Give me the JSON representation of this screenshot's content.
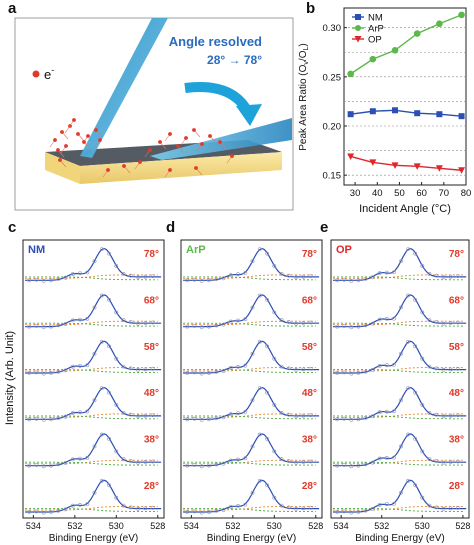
{
  "panel_labels": {
    "a": "a",
    "b": "b",
    "c": "c",
    "d": "d",
    "e": "e"
  },
  "illustration": {
    "electron_label": "e",
    "electron_sup": "-",
    "title": "Angle resolved",
    "range": "28° → 78°",
    "colors": {
      "beam": "#3fa9d8",
      "electron": "#e03a2a",
      "substrate": "#f3dc8c",
      "top_layer": "#4a4f57",
      "arrow": "#1da3d9"
    }
  },
  "chart_data": [
    {
      "type": "line",
      "panel": "b",
      "xlabel": "Incident Angle (°C)",
      "ylabel": "Peak Area Ratio (O",
      "ylabel_sub1": "v",
      "ylabel_mid": "/O",
      "ylabel_sub2": "L",
      "ylabel_end": ")",
      "xlim": [
        25,
        80
      ],
      "ylim": [
        0.14,
        0.32
      ],
      "xticks": [
        "30",
        "40",
        "50",
        "60",
        "70",
        "80"
      ],
      "yticks": [
        "0.15",
        "0.20",
        "0.25",
        "0.30"
      ],
      "legend_position": "top-left",
      "x": [
        28,
        38,
        48,
        58,
        68,
        78
      ],
      "series": [
        {
          "name": "NM",
          "color": "#2b4fb3",
          "marker": "square",
          "values": [
            0.212,
            0.215,
            0.216,
            0.213,
            0.212,
            0.21
          ]
        },
        {
          "name": "ArP",
          "color": "#5cb84a",
          "marker": "circle",
          "values": [
            0.253,
            0.268,
            0.277,
            0.294,
            0.304,
            0.313
          ]
        },
        {
          "name": "OP",
          "color": "#e0262b",
          "marker": "triangle-down",
          "values": [
            0.169,
            0.163,
            0.16,
            0.159,
            0.157,
            0.155
          ]
        }
      ],
      "grid": "dashed horizontal"
    },
    {
      "type": "line",
      "panels": [
        "c",
        "d",
        "e"
      ],
      "description": "stacked XPS spectra",
      "xlabel": "Binding Energy (eV)",
      "ylabel": "Intensity (Arb. Unit)",
      "xticks": [
        "534",
        "532",
        "530",
        "528"
      ],
      "xlim": [
        534.5,
        527.7
      ],
      "angles": [
        "78°",
        "68°",
        "58°",
        "48°",
        "38°",
        "28°"
      ],
      "samples": [
        {
          "label": "NM",
          "color": "#2b4fb3"
        },
        {
          "label": "ArP",
          "color": "#5cb84a"
        },
        {
          "label": "OP",
          "color": "#e0262b"
        }
      ],
      "angle_label_color": "#e03a2a"
    }
  ]
}
